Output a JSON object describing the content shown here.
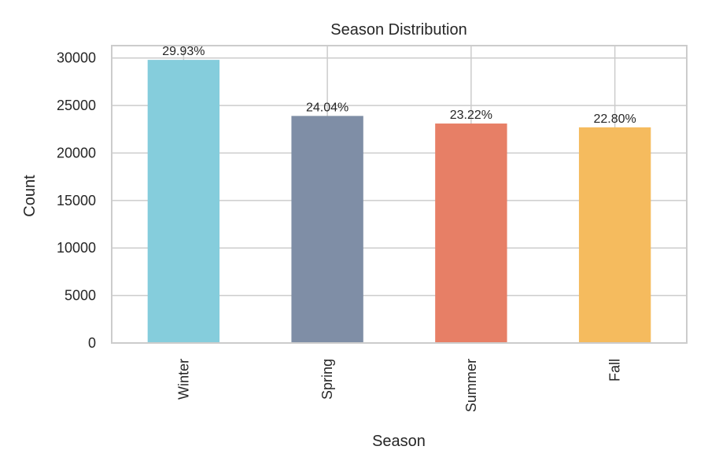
{
  "chart_data": {
    "type": "bar",
    "title": "Season Distribution",
    "xlabel": "Season",
    "ylabel": "Count",
    "categories": [
      "Winter",
      "Spring",
      "Summer",
      "Fall"
    ],
    "values": [
      29800,
      23900,
      23100,
      22700
    ],
    "data_labels": [
      "29.93%",
      "24.04%",
      "23.22%",
      "22.80%"
    ],
    "colors": [
      "#85cddc",
      "#7f8ea6",
      "#e77f66",
      "#f5bb5e"
    ],
    "yticks": [
      0,
      5000,
      10000,
      15000,
      20000,
      25000,
      30000
    ],
    "ytick_labels": [
      "0",
      "5000",
      "10000",
      "15000",
      "20000",
      "25000",
      "30000"
    ],
    "ylim": [
      0,
      31300
    ],
    "grid": true,
    "xtick_rotation": "vertical"
  }
}
